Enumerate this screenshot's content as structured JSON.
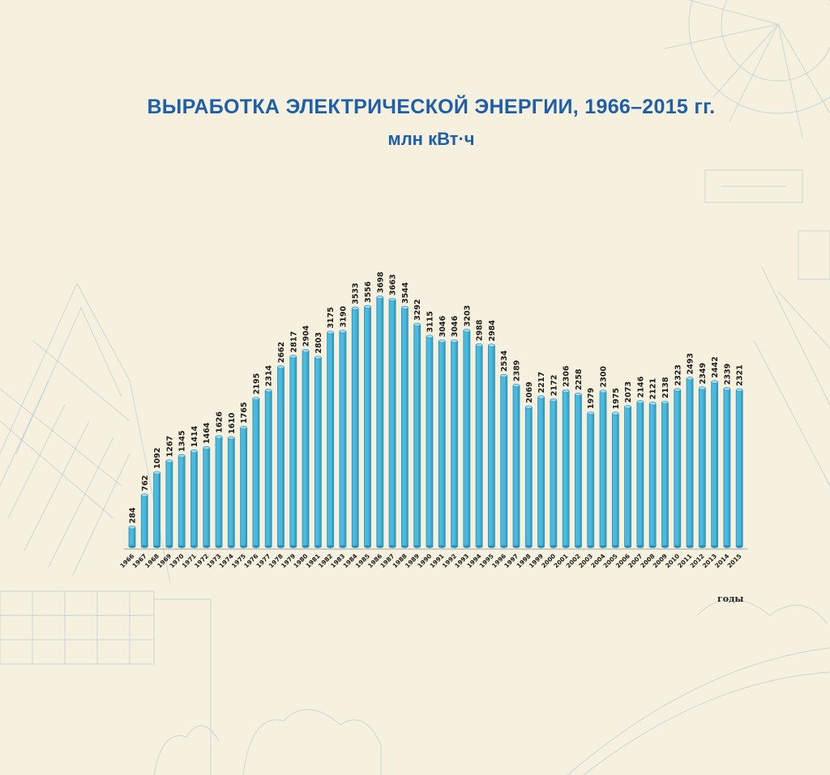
{
  "title": "ВЫРАБОТКА ЭЛЕКТРИЧЕСКОЙ ЭНЕРГИИ, 1966–2015 гг.",
  "subtitle": "млн кВт·ч",
  "colors": {
    "bar": "#4cb9dd",
    "bar_dark": "#2a8fb5",
    "bar_top": "#9fdcf2",
    "title": "#1f5fa8"
  },
  "chart_data": {
    "type": "bar",
    "title": "ВЫРАБОТКА ЭЛЕКТРИЧЕСКОЙ ЭНЕРГИИ, 1966–2015 гг.",
    "subtitle": "млн кВт·ч",
    "xlabel": "годы",
    "ylabel": "",
    "ylim": [
      0,
      4000
    ],
    "grid": false,
    "categories": [
      "1966",
      "1967",
      "1968",
      "1969",
      "1970",
      "1971",
      "1972",
      "1973",
      "1974",
      "1975",
      "1976",
      "1977",
      "1978",
      "1979",
      "1980",
      "1981",
      "1982",
      "1983",
      "1984",
      "1985",
      "1986",
      "1987",
      "1988",
      "1989",
      "1990",
      "1991",
      "1992",
      "1993",
      "1994",
      "1995",
      "1996",
      "1997",
      "1998",
      "1999",
      "2000",
      "2001",
      "2002",
      "2003",
      "2004",
      "2005",
      "2006",
      "2007",
      "2008",
      "2009",
      "2010",
      "2011",
      "2012",
      "2013",
      "2014",
      "2015"
    ],
    "values": [
      284,
      762,
      1092,
      1267,
      1345,
      1414,
      1464,
      1626,
      1610,
      1765,
      2195,
      2314,
      2662,
      2817,
      2904,
      2803,
      3175,
      3190,
      3533,
      3556,
      3698,
      3663,
      3544,
      3292,
      3115,
      3046,
      3046,
      3203,
      2988,
      2984,
      2534,
      2389,
      2069,
      2217,
      2172,
      2306,
      2258,
      1979,
      2300,
      1975,
      2073,
      2146,
      2121,
      2138,
      2323,
      2493,
      2349,
      2442,
      2339,
      2321
    ]
  }
}
